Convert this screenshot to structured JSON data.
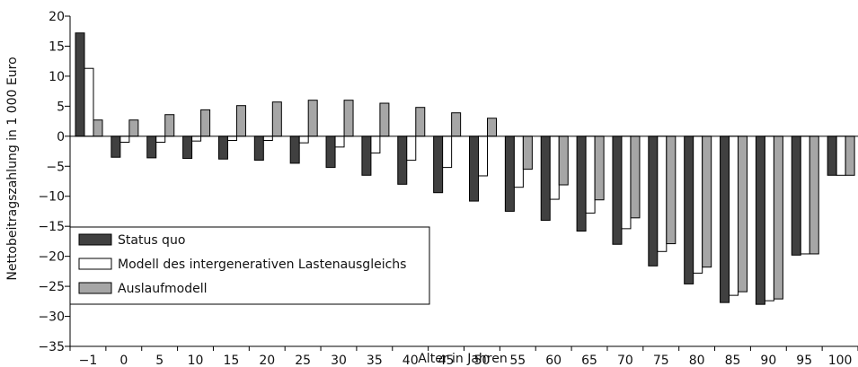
{
  "chart_data": {
    "type": "bar",
    "xlabel": "Alter in Jahren",
    "ylabel": "Nettobeitragszahlung in 1 000 Euro",
    "ylim": [
      -35,
      20
    ],
    "yticks": [
      "20",
      "15",
      "10",
      "5",
      "0",
      "-5",
      "-10",
      "-15",
      "-20",
      "-25",
      "-30",
      "-35"
    ],
    "categories": [
      "−1",
      "0",
      "5",
      "10",
      "15",
      "20",
      "25",
      "30",
      "35",
      "40",
      "45",
      "50",
      "55",
      "60",
      "65",
      "70",
      "75",
      "80",
      "85",
      "90",
      "95",
      "100"
    ],
    "series": [
      {
        "name": "Status quo",
        "color": "#404040",
        "values": [
          17.2,
          -3.5,
          -3.6,
          -3.7,
          -3.8,
          -4.0,
          -4.5,
          -5.2,
          -6.5,
          -8.0,
          -9.4,
          -10.8,
          -12.5,
          -14.0,
          -15.8,
          -18.0,
          -21.6,
          -24.6,
          -27.7,
          -28.0,
          -19.8,
          -6.5
        ]
      },
      {
        "name": "Modell des intergenerativen Lastenausgleichs",
        "color": "#ffffff",
        "values": [
          11.3,
          -1.0,
          -1.0,
          -0.8,
          -0.7,
          -0.7,
          -1.1,
          -1.8,
          -2.8,
          -4.0,
          -5.2,
          -6.6,
          -8.5,
          -10.5,
          -12.8,
          -15.4,
          -19.2,
          -22.8,
          -26.5,
          -27.4,
          -19.6,
          -6.5
        ]
      },
      {
        "name": "Auslaufmodell",
        "color": "#a6a6a6",
        "values": [
          2.7,
          2.7,
          3.6,
          4.4,
          5.1,
          5.7,
          6.0,
          6.0,
          5.5,
          4.8,
          3.9,
          3.0,
          -5.5,
          -8.1,
          -10.6,
          -13.6,
          -17.9,
          -21.8,
          -25.9,
          -27.1,
          -19.6,
          -6.5
        ]
      }
    ],
    "legend_position": "bottom-left",
    "grid": false
  }
}
